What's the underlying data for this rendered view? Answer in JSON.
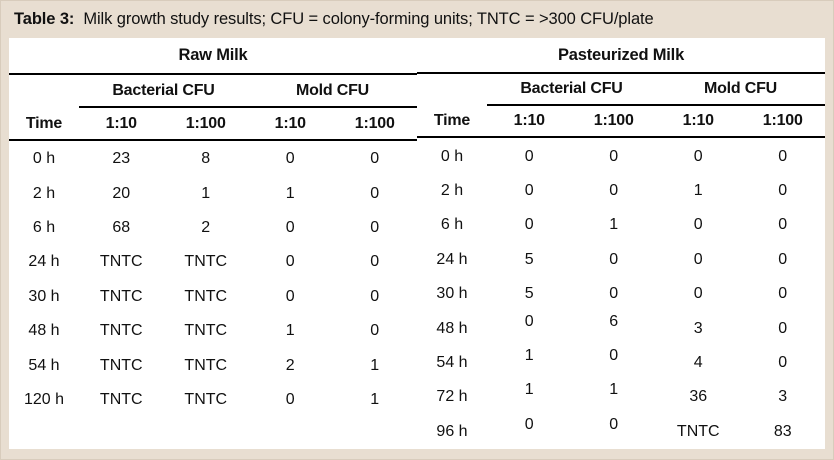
{
  "title": {
    "label": "Table 3:",
    "text": "Milk growth study results; CFU = colony-forming units; TNTC = >300 CFU/plate"
  },
  "colors": {
    "frame_background": "#e8ded1",
    "table_background": "#ffffff",
    "rule": "#000000",
    "text": "#111111"
  },
  "tables": [
    {
      "group_header": "Raw Milk",
      "sub_headers": [
        "Bacterial CFU",
        "Mold CFU"
      ],
      "column_headers": [
        "Time",
        "1:10",
        "1:100",
        "1:10",
        "1:100"
      ],
      "rows": [
        {
          "time": "0 h",
          "values": [
            "23",
            "8",
            "0",
            "0"
          ]
        },
        {
          "time": "2 h",
          "values": [
            "20",
            "1",
            "1",
            "0"
          ]
        },
        {
          "time": "6 h",
          "values": [
            "68",
            "2",
            "0",
            "0"
          ]
        },
        {
          "time": "24 h",
          "values": [
            "TNTC",
            "TNTC",
            "0",
            "0"
          ]
        },
        {
          "time": "30 h",
          "values": [
            "TNTC",
            "TNTC",
            "0",
            "0"
          ]
        },
        {
          "time": "48 h",
          "values": [
            "TNTC",
            "TNTC",
            "1",
            "0"
          ]
        },
        {
          "time": "54 h",
          "values": [
            "TNTC",
            "TNTC",
            "2",
            "1"
          ]
        },
        {
          "time": "120 h",
          "values": [
            "TNTC",
            "TNTC",
            "0",
            "1"
          ]
        }
      ]
    },
    {
      "group_header": "Pasteurized Milk",
      "sub_headers": [
        "Bacterial CFU",
        "Mold CFU"
      ],
      "column_headers": [
        "Time",
        "1:10",
        "1:100",
        "1:10",
        "1:100"
      ],
      "rows": [
        {
          "time": "0 h",
          "values": [
            "0",
            "0",
            "0",
            "0"
          ]
        },
        {
          "time": "2 h",
          "values": [
            "0",
            "0",
            "1",
            "0"
          ]
        },
        {
          "time": "6 h",
          "values": [
            "0",
            "1",
            "0",
            "0"
          ]
        },
        {
          "time": "24 h",
          "values": [
            "5",
            "0",
            "0",
            "0"
          ]
        },
        {
          "time": "30 h",
          "values": [
            "5",
            "0",
            "0",
            "0"
          ]
        },
        {
          "time": "48 h",
          "values": [
            "0",
            "6",
            "3",
            "0"
          ]
        },
        {
          "time": "54 h",
          "values": [
            "1",
            "0",
            "4",
            "0"
          ]
        },
        {
          "time": "72 h",
          "values": [
            "1",
            "1",
            "36",
            "3"
          ]
        },
        {
          "time": "96 h",
          "values": [
            "0",
            "0",
            "TNTC",
            "83"
          ]
        }
      ]
    }
  ]
}
